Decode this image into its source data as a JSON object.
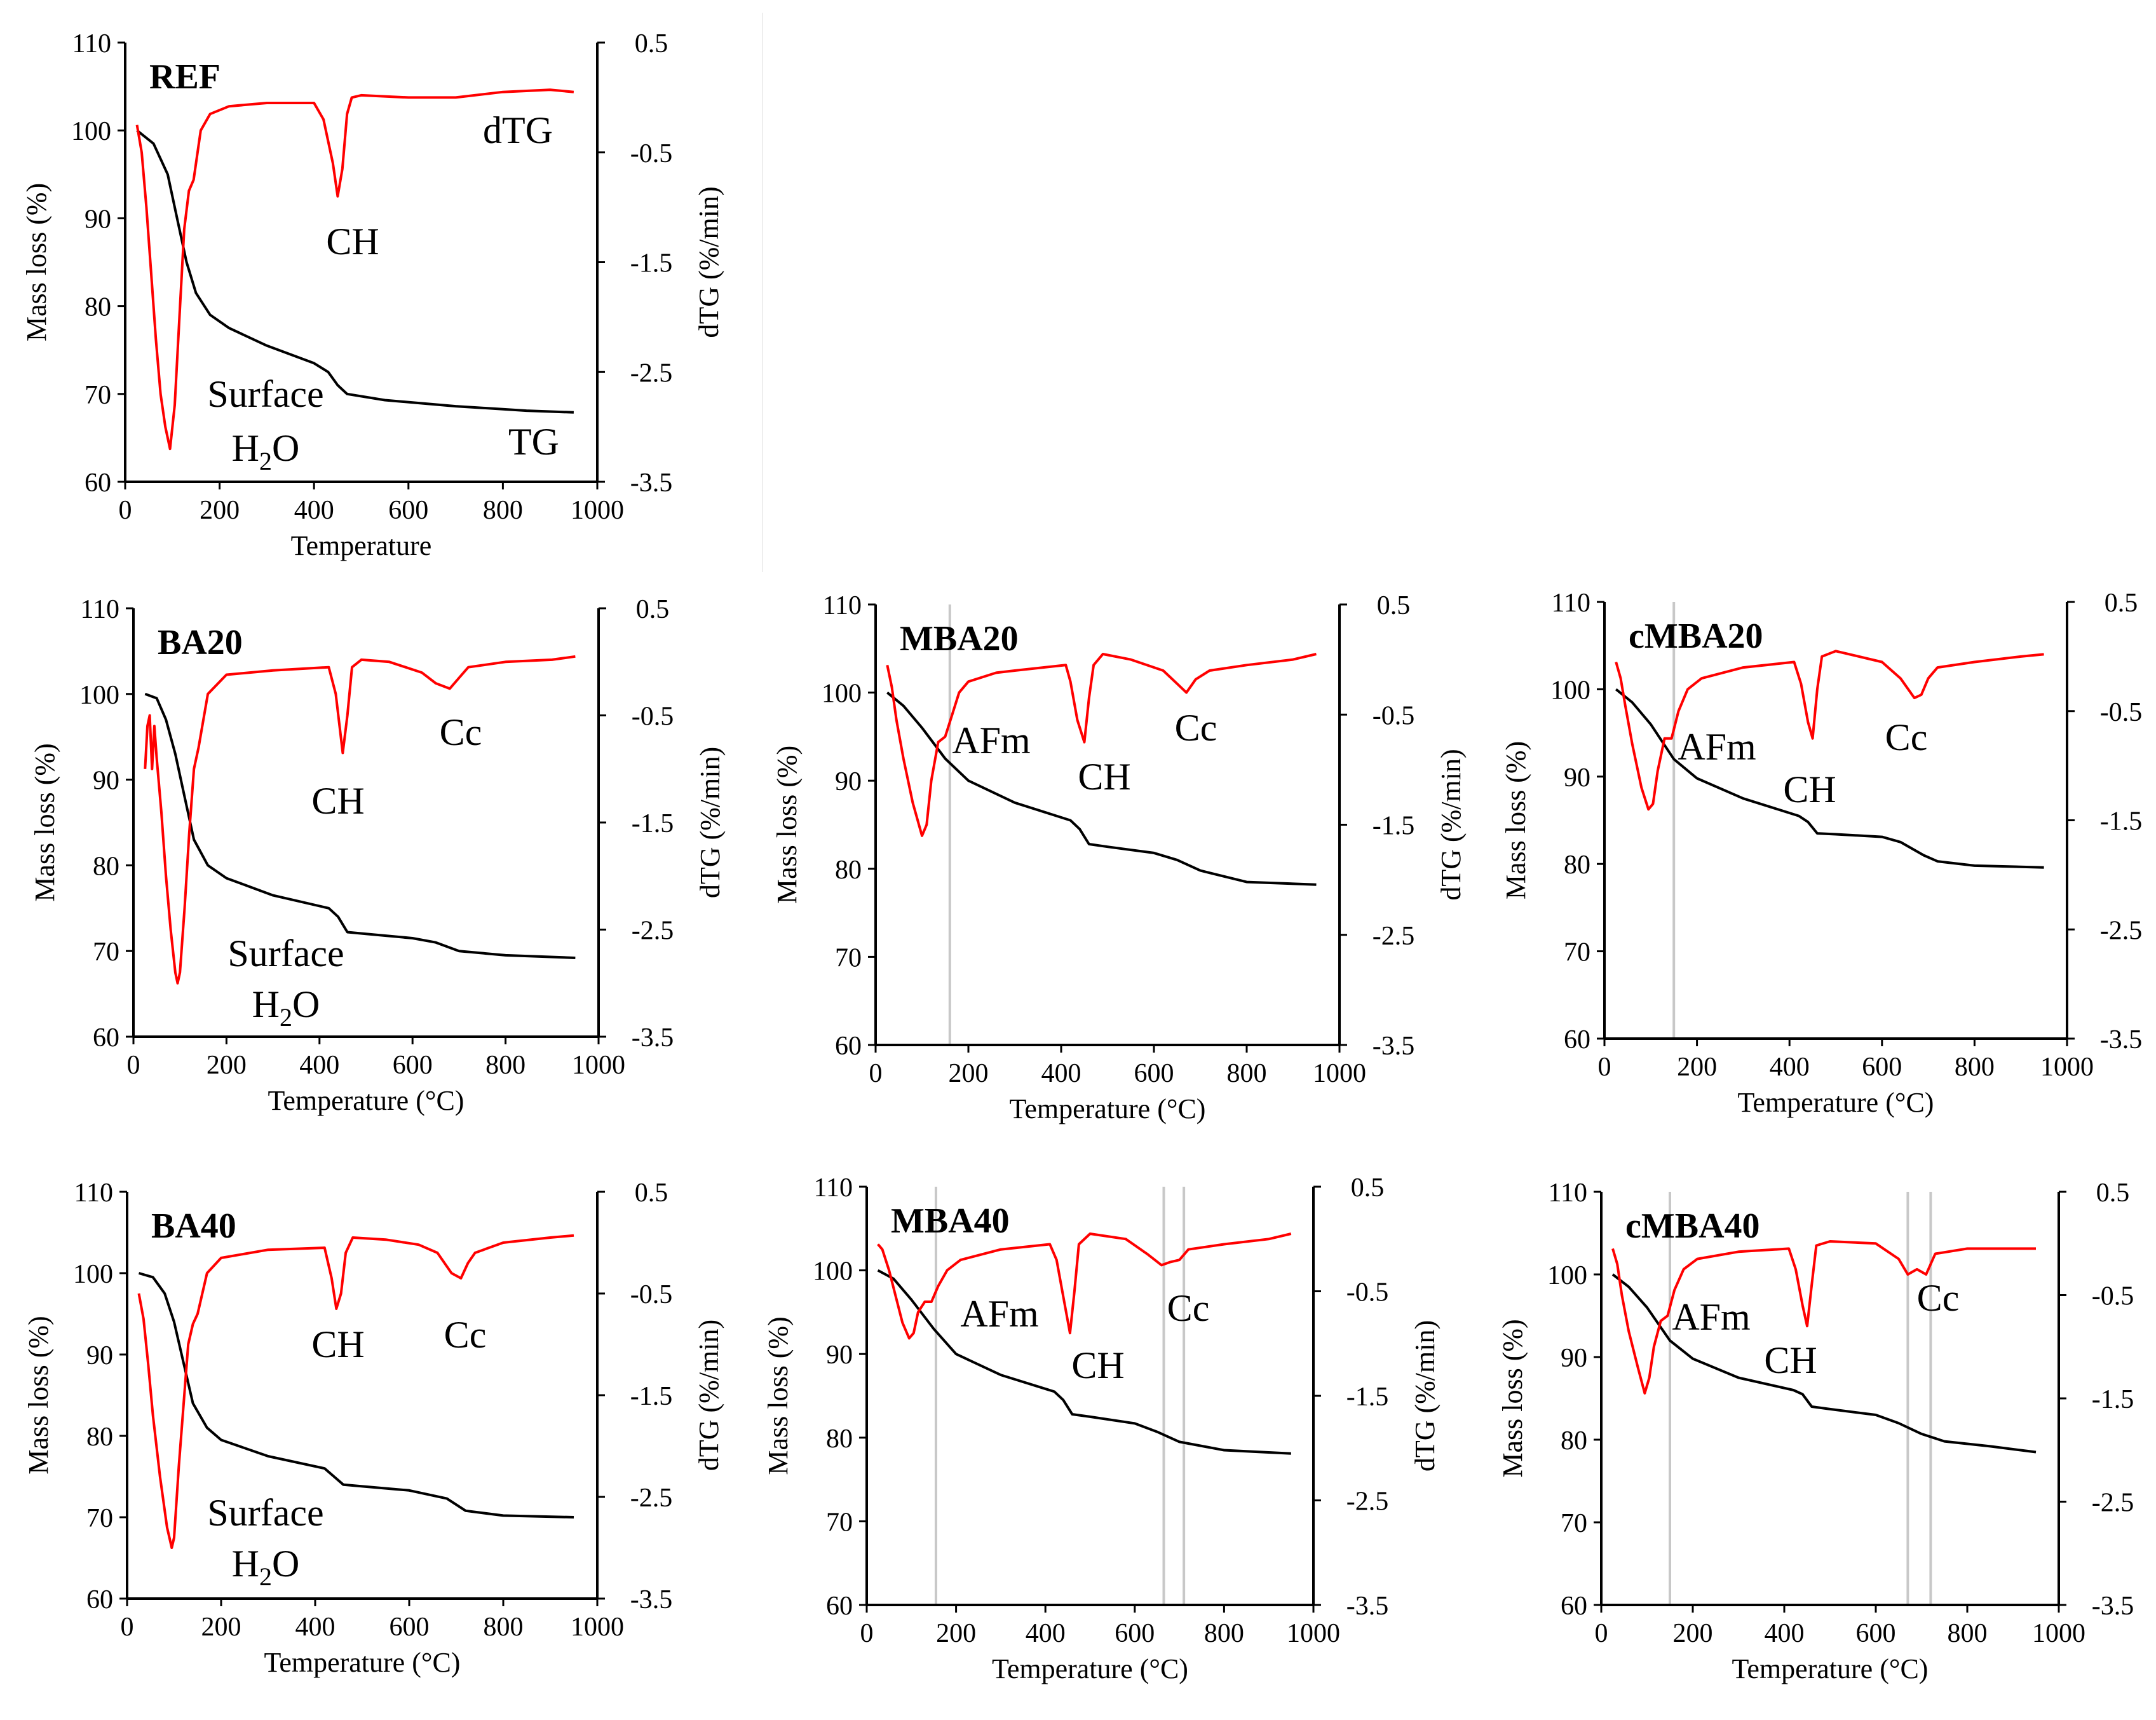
{
  "chart_data": [
    {
      "type": "line",
      "title": "REF",
      "xlabel": "Temperature",
      "ylabel": "Mass loss (%)",
      "y2label": "dTG (%/min)",
      "xlim": [
        0,
        1000
      ],
      "xticks": [
        0,
        200,
        400,
        600,
        800,
        1000
      ],
      "ylim": [
        60,
        110
      ],
      "yticks": [
        60,
        70,
        80,
        90,
        100,
        110
      ],
      "y2lim": [
        -3.5,
        0.5
      ],
      "y2ticks": [
        -3.5,
        -2.5,
        -1.5,
        -0.5,
        0.5
      ],
      "guides": [],
      "series": [
        {
          "name": "TG",
          "axis": "left",
          "x": [
            25,
            60,
            90,
            110,
            130,
            150,
            180,
            220,
            300,
            400,
            430,
            450,
            470,
            550,
            700,
            850,
            950
          ],
          "y": [
            100,
            98.5,
            95,
            90,
            85,
            81.5,
            79,
            77.5,
            75.5,
            73.5,
            72.5,
            71,
            70,
            69.3,
            68.6,
            68.1,
            67.9
          ]
        },
        {
          "name": "dTG",
          "axis": "right",
          "x": [
            25,
            35,
            45,
            55,
            65,
            75,
            85,
            95,
            105,
            115,
            125,
            135,
            145,
            160,
            180,
            220,
            300,
            400,
            420,
            440,
            450,
            460,
            470,
            480,
            500,
            600,
            700,
            800,
            900,
            950
          ],
          "y": [
            -0.25,
            -0.5,
            -1.0,
            -1.6,
            -2.2,
            -2.7,
            -3.0,
            -3.2,
            -2.8,
            -2.0,
            -1.2,
            -0.85,
            -0.75,
            -0.3,
            -0.15,
            -0.08,
            -0.05,
            -0.05,
            -0.2,
            -0.6,
            -0.9,
            -0.65,
            -0.15,
            0.0,
            0.02,
            0.0,
            0.0,
            0.05,
            0.07,
            0.05
          ]
        }
      ],
      "annotations": [
        {
          "text": "dTG"
        },
        {
          "text": "CH"
        },
        {
          "text": "Surface"
        },
        {
          "text": "H2O"
        },
        {
          "text": "TG"
        }
      ]
    },
    {
      "type": "line",
      "title": "BA20",
      "xlabel": "Temperature (°C)",
      "ylabel": "Mass loss (%)",
      "y2label": "dTG (%/min)",
      "xlim": [
        0,
        1000
      ],
      "xticks": [
        0,
        200,
        400,
        600,
        800,
        1000
      ],
      "ylim": [
        60,
        110
      ],
      "yticks": [
        60,
        70,
        80,
        90,
        100,
        110
      ],
      "y2lim": [
        -3.5,
        0.5
      ],
      "y2ticks": [
        -3.5,
        -2.5,
        -1.5,
        -0.5,
        0.5
      ],
      "guides": [],
      "series": [
        {
          "name": "TG",
          "axis": "left",
          "x": [
            25,
            50,
            70,
            90,
            110,
            130,
            160,
            200,
            300,
            420,
            440,
            460,
            500,
            600,
            650,
            700,
            800,
            950
          ],
          "y": [
            100,
            99.5,
            97,
            93,
            88,
            83,
            80,
            78.5,
            76.5,
            75,
            74,
            72.2,
            72,
            71.5,
            71,
            70,
            69.5,
            69.2
          ]
        },
        {
          "name": "dTG",
          "axis": "right",
          "x": [
            25,
            30,
            35,
            40,
            45,
            50,
            60,
            70,
            80,
            90,
            95,
            100,
            110,
            120,
            130,
            140,
            160,
            200,
            300,
            420,
            435,
            450,
            460,
            470,
            490,
            550,
            620,
            650,
            680,
            700,
            720,
            800,
            900,
            950
          ],
          "y": [
            -1.0,
            -0.6,
            -0.5,
            -1.0,
            -0.6,
            -0.9,
            -1.4,
            -2.0,
            -2.5,
            -2.9,
            -3.0,
            -2.9,
            -2.3,
            -1.6,
            -1.0,
            -0.8,
            -0.3,
            -0.12,
            -0.08,
            -0.05,
            -0.3,
            -0.85,
            -0.5,
            -0.05,
            0.02,
            0.0,
            -0.1,
            -0.2,
            -0.25,
            -0.15,
            -0.05,
            0.0,
            0.02,
            0.05
          ]
        }
      ],
      "annotations": [
        {
          "text": "Cc"
        },
        {
          "text": "CH"
        },
        {
          "text": "Surface"
        },
        {
          "text": "H2O"
        }
      ]
    },
    {
      "type": "line",
      "title": "MBA20",
      "xlabel": "Temperature (°C)",
      "ylabel": "Mass loss (%)",
      "y2label": "dTG (%/min)",
      "xlim": [
        0,
        1000
      ],
      "xticks": [
        0,
        200,
        400,
        600,
        800,
        1000
      ],
      "ylim": [
        60,
        110
      ],
      "yticks": [
        60,
        70,
        80,
        90,
        100,
        110
      ],
      "y2lim": [
        -3.5,
        0.5
      ],
      "y2ticks": [
        -3.5,
        -2.5,
        -1.5,
        -0.5,
        0.5
      ],
      "guides": [
        160
      ],
      "series": [
        {
          "name": "TG",
          "axis": "left",
          "x": [
            25,
            60,
            100,
            150,
            200,
            300,
            420,
            440,
            460,
            500,
            600,
            650,
            700,
            800,
            950
          ],
          "y": [
            100,
            98.5,
            96,
            92.5,
            90,
            87.5,
            85.5,
            84.5,
            82.8,
            82.5,
            81.8,
            81,
            79.8,
            78.5,
            78.2
          ]
        },
        {
          "name": "dTG",
          "axis": "right",
          "x": [
            25,
            35,
            45,
            60,
            80,
            100,
            110,
            120,
            135,
            150,
            165,
            180,
            200,
            260,
            300,
            410,
            420,
            435,
            450,
            460,
            470,
            490,
            550,
            620,
            650,
            670,
            690,
            720,
            800,
            900,
            950
          ],
          "y": [
            -0.05,
            -0.25,
            -0.55,
            -0.9,
            -1.3,
            -1.6,
            -1.5,
            -1.1,
            -0.75,
            -0.7,
            -0.5,
            -0.3,
            -0.2,
            -0.12,
            -0.1,
            -0.05,
            -0.2,
            -0.55,
            -0.75,
            -0.35,
            -0.05,
            0.05,
            0.0,
            -0.1,
            -0.22,
            -0.3,
            -0.18,
            -0.1,
            -0.05,
            0.0,
            0.05
          ]
        }
      ],
      "annotations": [
        {
          "text": "AFm"
        },
        {
          "text": "CH"
        },
        {
          "text": "Cc"
        }
      ]
    },
    {
      "type": "line",
      "title": "cMBA20",
      "xlabel": "Temperature (°C)",
      "ylabel": "Mass loss (%)",
      "y2label": "dTG (%/min)",
      "xlim": [
        0,
        1000
      ],
      "xticks": [
        0,
        200,
        400,
        600,
        800,
        1000
      ],
      "ylim": [
        60,
        110
      ],
      "yticks": [
        60,
        70,
        80,
        90,
        100,
        110
      ],
      "y2lim": [
        -3.5,
        0.5
      ],
      "y2ticks": [
        -3.5,
        -2.5,
        -1.5,
        -0.5,
        0.5
      ],
      "guides": [
        150
      ],
      "series": [
        {
          "name": "TG",
          "axis": "left",
          "x": [
            25,
            60,
            100,
            150,
            200,
            300,
            420,
            440,
            460,
            500,
            600,
            640,
            690,
            720,
            800,
            950
          ],
          "y": [
            100,
            98.5,
            96,
            92,
            89.8,
            87.5,
            85.5,
            84.8,
            83.5,
            83.4,
            83.1,
            82.5,
            81,
            80.3,
            79.8,
            79.6
          ]
        },
        {
          "name": "dTG",
          "axis": "right",
          "x": [
            25,
            35,
            45,
            60,
            80,
            95,
            105,
            115,
            130,
            145,
            160,
            180,
            210,
            300,
            410,
            425,
            440,
            450,
            460,
            470,
            500,
            600,
            640,
            670,
            685,
            700,
            720,
            800,
            900,
            950
          ],
          "y": [
            -0.05,
            -0.2,
            -0.45,
            -0.8,
            -1.2,
            -1.4,
            -1.35,
            -1.05,
            -0.75,
            -0.75,
            -0.5,
            -0.3,
            -0.2,
            -0.1,
            -0.05,
            -0.25,
            -0.6,
            -0.75,
            -0.3,
            0.0,
            0.05,
            -0.05,
            -0.2,
            -0.38,
            -0.35,
            -0.2,
            -0.1,
            -0.05,
            0.0,
            0.02
          ]
        }
      ],
      "annotations": [
        {
          "text": "AFm"
        },
        {
          "text": "CH"
        },
        {
          "text": "Cc"
        }
      ]
    },
    {
      "type": "line",
      "title": "BA40",
      "xlabel": "Temperature (°C)",
      "ylabel": "Mass loss (%)",
      "y2label": "dTG (%/min)",
      "xlim": [
        0,
        1000
      ],
      "xticks": [
        0,
        200,
        400,
        600,
        800,
        1000
      ],
      "ylim": [
        60,
        110
      ],
      "yticks": [
        60,
        70,
        80,
        90,
        100,
        110
      ],
      "y2lim": [
        -3.5,
        0.5
      ],
      "y2ticks": [
        -3.5,
        -2.5,
        -1.5,
        -0.5,
        0.5
      ],
      "guides": [],
      "series": [
        {
          "name": "TG",
          "axis": "left",
          "x": [
            25,
            55,
            80,
            100,
            120,
            140,
            170,
            200,
            300,
            420,
            440,
            460,
            500,
            600,
            680,
            720,
            800,
            950
          ],
          "y": [
            100,
            99.5,
            97.5,
            94,
            89,
            84,
            81,
            79.5,
            77.5,
            76,
            75,
            74,
            73.8,
            73.3,
            72.3,
            70.8,
            70.2,
            70
          ]
        },
        {
          "name": "dTG",
          "axis": "right",
          "x": [
            25,
            35,
            45,
            55,
            70,
            85,
            95,
            100,
            110,
            120,
            130,
            140,
            150,
            170,
            200,
            300,
            420,
            435,
            445,
            455,
            465,
            480,
            550,
            620,
            660,
            690,
            710,
            725,
            740,
            800,
            900,
            950
          ],
          "y": [
            -0.5,
            -0.75,
            -1.2,
            -1.7,
            -2.3,
            -2.8,
            -3.0,
            -2.9,
            -2.2,
            -1.6,
            -1.0,
            -0.8,
            -0.7,
            -0.3,
            -0.15,
            -0.07,
            -0.05,
            -0.35,
            -0.65,
            -0.5,
            -0.1,
            0.05,
            0.03,
            -0.02,
            -0.1,
            -0.3,
            -0.35,
            -0.2,
            -0.1,
            0.0,
            0.05,
            0.07
          ]
        }
      ],
      "annotations": [
        {
          "text": "CH"
        },
        {
          "text": "Cc"
        },
        {
          "text": "Surface"
        },
        {
          "text": "H2O"
        }
      ]
    },
    {
      "type": "line",
      "title": "MBA40",
      "xlabel": "Temperature (°C)",
      "ylabel": "Mass loss (%)",
      "y2label": "dTG (%/min)",
      "xlim": [
        0,
        1000
      ],
      "xticks": [
        0,
        200,
        400,
        600,
        800,
        1000
      ],
      "ylim": [
        60,
        110
      ],
      "yticks": [
        60,
        70,
        80,
        90,
        100,
        110
      ],
      "y2lim": [
        -3.5,
        0.5
      ],
      "y2ticks": [
        -3.5,
        -2.5,
        -1.5,
        -0.5,
        0.5
      ],
      "guides": [
        155,
        665,
        710
      ],
      "series": [
        {
          "name": "TG",
          "axis": "left",
          "x": [
            25,
            60,
            100,
            150,
            200,
            300,
            420,
            440,
            460,
            500,
            600,
            650,
            700,
            800,
            950
          ],
          "y": [
            100,
            99,
            96.5,
            93,
            90,
            87.5,
            85.5,
            84.5,
            82.8,
            82.5,
            81.7,
            80.7,
            79.5,
            78.5,
            78.1
          ]
        },
        {
          "name": "dTG",
          "axis": "right",
          "x": [
            25,
            35,
            50,
            65,
            80,
            95,
            105,
            115,
            130,
            145,
            160,
            180,
            210,
            300,
            410,
            425,
            440,
            455,
            465,
            475,
            500,
            580,
            630,
            660,
            680,
            700,
            720,
            800,
            900,
            950
          ],
          "y": [
            -0.05,
            -0.1,
            -0.3,
            -0.55,
            -0.8,
            -0.95,
            -0.9,
            -0.7,
            -0.6,
            -0.6,
            -0.45,
            -0.3,
            -0.2,
            -0.1,
            -0.05,
            -0.2,
            -0.55,
            -0.9,
            -0.5,
            -0.05,
            0.05,
            0.0,
            -0.15,
            -0.25,
            -0.22,
            -0.2,
            -0.1,
            -0.05,
            0.0,
            0.05
          ]
        }
      ],
      "annotations": [
        {
          "text": "AFm"
        },
        {
          "text": "CH"
        },
        {
          "text": "Cc"
        }
      ]
    },
    {
      "type": "line",
      "title": "cMBA40",
      "xlabel": "Temperature (°C)",
      "ylabel": "Mass loss (%)",
      "y2label": "dTG (%/min)",
      "xlim": [
        0,
        1000
      ],
      "xticks": [
        0,
        200,
        400,
        600,
        800,
        1000
      ],
      "ylim": [
        60,
        110
      ],
      "yticks": [
        60,
        70,
        80,
        90,
        100,
        110
      ],
      "y2lim": [
        -3.5,
        0.5
      ],
      "y2ticks": [
        -3.5,
        -2.5,
        -1.5,
        -0.5,
        0.5
      ],
      "guides": [
        150,
        670,
        720
      ],
      "series": [
        {
          "name": "TG",
          "axis": "left",
          "x": [
            25,
            60,
            100,
            150,
            200,
            300,
            420,
            440,
            460,
            500,
            600,
            650,
            700,
            750,
            850,
            950
          ],
          "y": [
            100,
            98.5,
            96,
            92,
            89.8,
            87.5,
            86,
            85.5,
            84,
            83.7,
            83,
            82,
            80.7,
            79.8,
            79.2,
            78.5
          ]
        },
        {
          "name": "dTG",
          "axis": "right",
          "x": [
            25,
            35,
            45,
            60,
            80,
            95,
            105,
            115,
            130,
            145,
            160,
            180,
            210,
            300,
            410,
            425,
            440,
            450,
            460,
            470,
            500,
            600,
            650,
            670,
            690,
            710,
            730,
            800,
            900,
            950
          ],
          "y": [
            -0.05,
            -0.2,
            -0.5,
            -0.85,
            -1.2,
            -1.45,
            -1.3,
            -1.0,
            -0.75,
            -0.7,
            -0.45,
            -0.25,
            -0.15,
            -0.08,
            -0.05,
            -0.25,
            -0.6,
            -0.8,
            -0.4,
            -0.02,
            0.02,
            0.0,
            -0.15,
            -0.3,
            -0.25,
            -0.3,
            -0.1,
            -0.05,
            -0.05,
            -0.05
          ]
        }
      ],
      "annotations": [
        {
          "text": "AFm"
        },
        {
          "text": "CH"
        },
        {
          "text": "Cc"
        }
      ]
    }
  ]
}
